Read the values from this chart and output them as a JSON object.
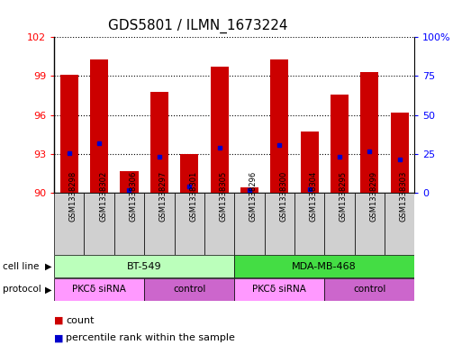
{
  "title": "GDS5801 / ILMN_1673224",
  "samples": [
    "GSM1338298",
    "GSM1338302",
    "GSM1338306",
    "GSM1338297",
    "GSM1338301",
    "GSM1338305",
    "GSM1338296",
    "GSM1338300",
    "GSM1338304",
    "GSM1338295",
    "GSM1338299",
    "GSM1338303"
  ],
  "bar_heights": [
    99.1,
    100.3,
    91.7,
    97.8,
    93.0,
    99.7,
    90.4,
    100.3,
    94.7,
    97.6,
    99.3,
    96.2
  ],
  "blue_dot_y": [
    93.1,
    93.8,
    90.2,
    92.8,
    90.5,
    93.5,
    90.2,
    93.7,
    90.3,
    92.8,
    93.2,
    92.6
  ],
  "ylim_left": [
    90,
    102
  ],
  "ylim_right": [
    0,
    100
  ],
  "yticks_left": [
    90,
    93,
    96,
    99,
    102
  ],
  "yticks_right": [
    0,
    25,
    50,
    75,
    100
  ],
  "bar_color": "#cc0000",
  "dot_color": "#0000cc",
  "bar_bottom": 90,
  "cell_line_groups": [
    {
      "label": "BT-549",
      "start": 0,
      "end": 6,
      "color": "#bbffbb"
    },
    {
      "label": "MDA-MB-468",
      "start": 6,
      "end": 12,
      "color": "#44dd44"
    }
  ],
  "protocol_groups": [
    {
      "label": "PKCδ siRNA",
      "start": 0,
      "end": 3,
      "color": "#ff99ff"
    },
    {
      "label": "control",
      "start": 3,
      "end": 6,
      "color": "#cc66cc"
    },
    {
      "label": "PKCδ siRNA",
      "start": 6,
      "end": 9,
      "color": "#ff99ff"
    },
    {
      "label": "control",
      "start": 9,
      "end": 12,
      "color": "#cc66cc"
    }
  ],
  "sample_box_color": "#d0d0d0",
  "plot_bg": "#ffffff",
  "grid_color": "#000000",
  "legend_count_color": "#cc0000",
  "legend_pct_color": "#0000cc"
}
